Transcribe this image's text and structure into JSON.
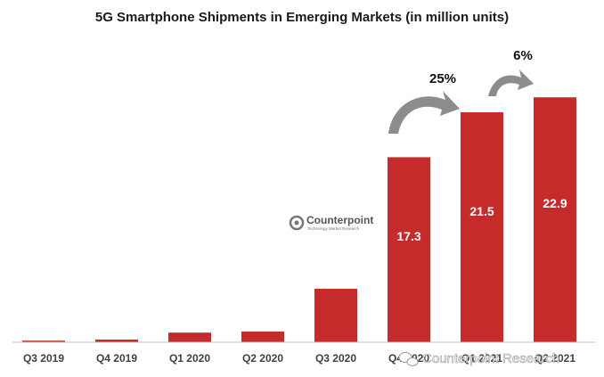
{
  "chart_data": {
    "type": "bar",
    "title": "5G Smartphone Shipments in Emerging Markets (in million units)",
    "categories": [
      "Q3 2019",
      "Q4 2019",
      "Q1 2020",
      "Q2 2020",
      "Q3 2020",
      "Q4 2020",
      "Q1 2021",
      "Q2 2021"
    ],
    "values": [
      0.15,
      0.25,
      0.9,
      1.0,
      5.0,
      17.3,
      21.5,
      22.9
    ],
    "data_labels": [
      "",
      "",
      "",
      "",
      "",
      "17.3",
      "21.5",
      "22.9"
    ],
    "ylim": [
      0,
      24
    ],
    "grid": false,
    "bar_color": "#c62b2b",
    "annotations": [
      {
        "label": "25%",
        "from_category": "Q4 2020",
        "to_category": "Q1 2021"
      },
      {
        "label": "6%",
        "from_category": "Q1 2021",
        "to_category": "Q2 2021"
      }
    ]
  },
  "logo": {
    "name": "Counterpoint",
    "tagline": "Technology Market Research",
    "icon": "counterpoint-logo-icon"
  },
  "watermark": {
    "text": "Counterpoint Research",
    "icon": "wechat-icon"
  },
  "colors": {
    "bar": "#c62b2b",
    "arrow": "#8c8c8c",
    "axis": "#bfbfbf"
  }
}
